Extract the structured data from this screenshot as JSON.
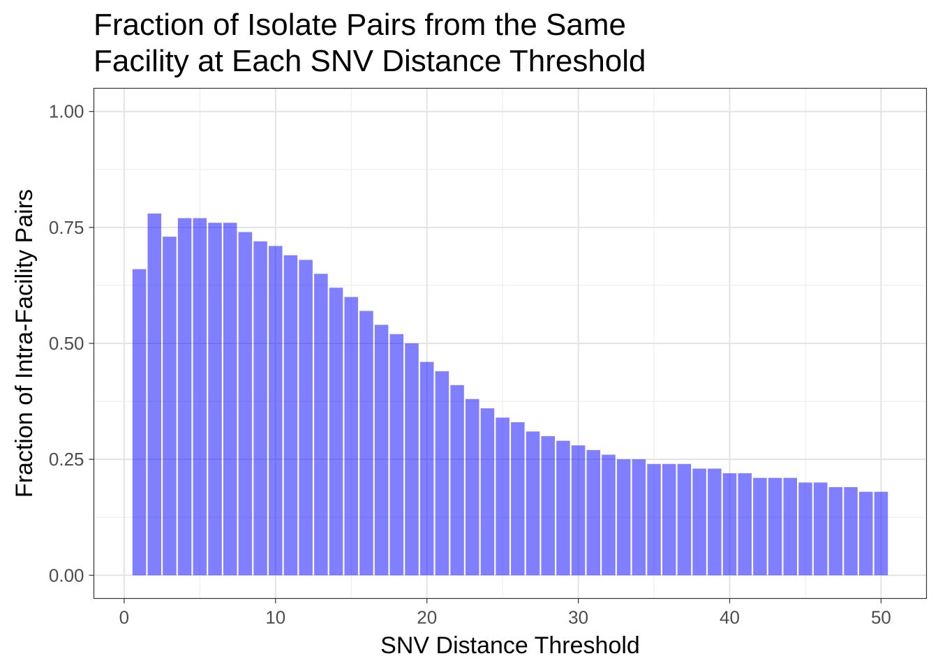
{
  "chart_data": {
    "type": "bar",
    "title_lines": [
      "Fraction of Isolate Pairs from the Same",
      "Facility at Each SNV Distance Threshold"
    ],
    "xlabel": "SNV Distance Threshold",
    "ylabel": "Fraction of Intra-Facility Pairs",
    "x": [
      1,
      2,
      3,
      4,
      5,
      6,
      7,
      8,
      9,
      10,
      11,
      12,
      13,
      14,
      15,
      16,
      17,
      18,
      19,
      20,
      21,
      22,
      23,
      24,
      25,
      26,
      27,
      28,
      29,
      30,
      31,
      32,
      33,
      34,
      35,
      36,
      37,
      38,
      39,
      40,
      41,
      42,
      43,
      44,
      45,
      46,
      47,
      48,
      49,
      50
    ],
    "values": [
      0.66,
      0.78,
      0.73,
      0.77,
      0.77,
      0.76,
      0.76,
      0.74,
      0.72,
      0.71,
      0.69,
      0.68,
      0.65,
      0.62,
      0.6,
      0.57,
      0.54,
      0.52,
      0.5,
      0.46,
      0.44,
      0.41,
      0.38,
      0.36,
      0.34,
      0.33,
      0.31,
      0.3,
      0.29,
      0.28,
      0.27,
      0.26,
      0.25,
      0.25,
      0.24,
      0.24,
      0.24,
      0.23,
      0.23,
      0.22,
      0.22,
      0.21,
      0.21,
      0.21,
      0.2,
      0.2,
      0.19,
      0.19,
      0.18,
      0.18
    ],
    "xlim": [
      -2,
      53
    ],
    "ylim": [
      -0.05,
      1.05
    ],
    "xticks": [
      0,
      10,
      20,
      30,
      40,
      50
    ],
    "xtick_labels": [
      "0",
      "10",
      "20",
      "30",
      "40",
      "50"
    ],
    "yticks": [
      0,
      0.25,
      0.5,
      0.75,
      1.0
    ],
    "ytick_labels": [
      "0.00",
      "0.25",
      "0.50",
      "0.75",
      "1.00"
    ],
    "grid": true,
    "bar_color": "#0000ff",
    "bar_opacity": 0.5
  }
}
